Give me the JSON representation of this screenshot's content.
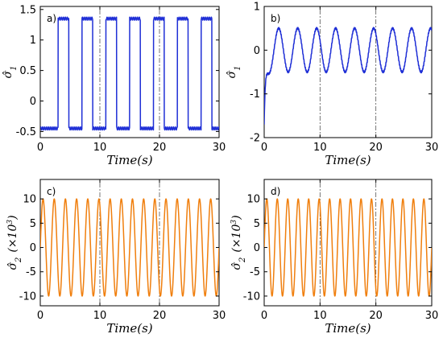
{
  "chart_data": [
    {
      "panel": "a)",
      "type": "line",
      "xlabel": "Time(s)",
      "ylabel": "σ̂",
      "ylabel_sub": "1",
      "ylabel_sup": "",
      "ylabel_suffix": "",
      "xlim": [
        0,
        30
      ],
      "ylim": [
        -0.6,
        1.55
      ],
      "xticks": [
        0,
        10,
        20,
        30
      ],
      "yticks": [
        -0.5,
        0,
        0.5,
        1,
        1.5
      ],
      "ytick_labels": [
        "-0.5",
        "0",
        "0.5",
        "1",
        "1.5"
      ],
      "ref_lines_x": [
        10,
        20
      ],
      "color": "#1f2fd6",
      "series": [
        {
          "kind": "square_wave",
          "low": -0.45,
          "high": 1.35,
          "first_rise": 3.0,
          "period": 4.0,
          "high_duration": 1.8,
          "x_end": 30
        }
      ]
    },
    {
      "panel": "b)",
      "type": "line",
      "xlabel": "Time(s)",
      "ylabel": "σ̂",
      "ylabel_sub": "1",
      "ylabel_sup": "",
      "ylabel_suffix": "",
      "xlim": [
        0,
        30
      ],
      "ylim": [
        -2,
        1
      ],
      "xticks": [
        0,
        10,
        20,
        30
      ],
      "yticks": [
        -2,
        -1,
        0,
        1
      ],
      "ytick_labels": [
        "-2",
        "-1",
        "0",
        "1"
      ],
      "ref_lines_x": [
        10,
        20
      ],
      "color": "#1f2fd6",
      "series": [
        {
          "kind": "damped_sine",
          "start_value": -1.7,
          "offset": 0.0,
          "amplitude": 0.5,
          "period": 3.4,
          "phase_peak_x": 6.0,
          "x_end": 30
        }
      ]
    },
    {
      "panel": "c)",
      "type": "line",
      "xlabel": "Time(s)",
      "ylabel": "σ̂",
      "ylabel_sub": "2",
      "ylabel_sup": "3",
      "ylabel_suffix": "(×10",
      "xlim": [
        0,
        30
      ],
      "ylim": [
        -12,
        14
      ],
      "xticks": [
        0,
        10,
        20,
        30
      ],
      "yticks": [
        -10,
        -5,
        0,
        5,
        10
      ],
      "ytick_labels": [
        "-10",
        "-5",
        "0",
        "5",
        "10"
      ],
      "ref_lines_x": [
        10,
        20
      ],
      "color": "#f07f0e",
      "series": [
        {
          "kind": "sine",
          "offset": 0,
          "amplitude": 10,
          "period": 1.875,
          "x_end": 30
        }
      ]
    },
    {
      "panel": "d)",
      "type": "line",
      "xlabel": "Time(s)",
      "ylabel": "σ̂",
      "ylabel_sub": "2",
      "ylabel_sup": "3",
      "ylabel_suffix": "(×10",
      "xlim": [
        0,
        30
      ],
      "ylim": [
        -12,
        14
      ],
      "xticks": [
        0,
        10,
        20,
        30
      ],
      "yticks": [
        -10,
        -5,
        0,
        5,
        10
      ],
      "ytick_labels": [
        "-10",
        "-5",
        "0",
        "5",
        "10"
      ],
      "ref_lines_x": [
        10,
        20
      ],
      "color": "#f07f0e",
      "series": [
        {
          "kind": "sine",
          "offset": 0,
          "amplitude": 10,
          "period": 1.875,
          "x_end": 30
        }
      ]
    }
  ]
}
